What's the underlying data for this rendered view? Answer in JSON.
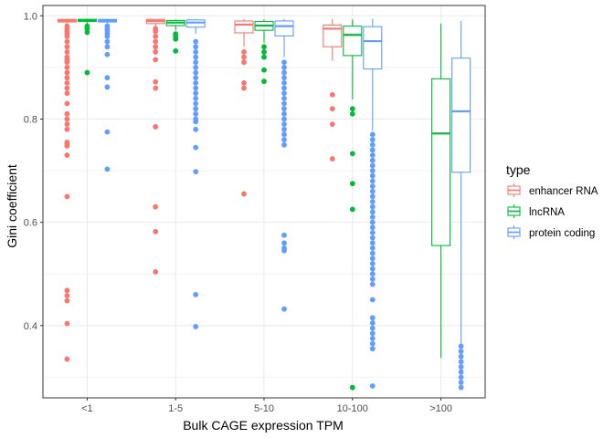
{
  "chart_data": {
    "type": "boxplot",
    "title": "",
    "xlabel": "Bulk CAGE expression TPM",
    "ylabel": "Gini coefficient",
    "categories": [
      "<1",
      "1-5",
      "5-10",
      "10-100",
      ">100"
    ],
    "ylim": [
      0.26,
      1.02
    ],
    "yticks": [
      0.4,
      0.6,
      0.8,
      1.0
    ],
    "ytick_labels": [
      "0.4",
      "0.6",
      "0.8",
      "1.0"
    ],
    "grid": true,
    "legend": {
      "title": "type",
      "position": "right"
    },
    "series": [
      {
        "name": "enhancer RNA",
        "color": "#F8766D",
        "boxes": [
          {
            "category": "<1",
            "q1": 0.988,
            "median": 0.991,
            "q3": 0.993,
            "whisker_low": 0.985,
            "whisker_high": 0.994,
            "outliers": [
              0.335,
              0.404,
              0.448,
              0.458,
              0.468,
              0.65,
              0.73,
              0.748,
              0.752,
              0.755,
              0.78,
              0.79,
              0.8,
              0.81,
              0.83,
              0.85,
              0.86,
              0.87,
              0.88,
              0.89,
              0.9,
              0.91,
              0.915,
              0.92,
              0.93,
              0.94,
              0.95,
              0.96,
              0.965,
              0.97,
              0.975,
              0.98
            ]
          },
          {
            "category": "1-5",
            "q1": 0.985,
            "median": 0.99,
            "q3": 0.993,
            "whisker_low": 0.98,
            "whisker_high": 0.994,
            "outliers": [
              0.504,
              0.582,
              0.63,
              0.785,
              0.86,
              0.872,
              0.915,
              0.93,
              0.94,
              0.95,
              0.96,
              0.97,
              0.975
            ]
          },
          {
            "category": "5-10",
            "q1": 0.967,
            "median": 0.983,
            "q3": 0.99,
            "whisker_low": 0.94,
            "whisker_high": 0.994,
            "outliers": [
              0.655,
              0.86,
              0.87,
              0.91,
              0.92,
              0.93
            ]
          },
          {
            "category": "10-100",
            "q1": 0.94,
            "median": 0.975,
            "q3": 0.982,
            "whisker_low": 0.913,
            "whisker_high": 0.994,
            "outliers": [
              0.723,
              0.79,
              0.82,
              0.847
            ]
          },
          {
            "category": ">100",
            "empty": true
          }
        ]
      },
      {
        "name": "lncRNA",
        "color": "#00BA38",
        "boxes": [
          {
            "category": "<1",
            "q1": 0.989,
            "median": 0.992,
            "q3": 0.993,
            "whisker_low": 0.984,
            "whisker_high": 0.994,
            "outliers": [
              0.89,
              0.968,
              0.975,
              0.98
            ]
          },
          {
            "category": "1-5",
            "q1": 0.981,
            "median": 0.987,
            "q3": 0.991,
            "whisker_low": 0.972,
            "whisker_high": 0.993,
            "outliers": [
              0.932,
              0.955,
              0.96,
              0.965
            ]
          },
          {
            "category": "5-10",
            "q1": 0.972,
            "median": 0.981,
            "q3": 0.989,
            "whisker_low": 0.948,
            "whisker_high": 0.993,
            "outliers": [
              0.873,
              0.895,
              0.92,
              0.93,
              0.94
            ]
          },
          {
            "category": "10-100",
            "q1": 0.923,
            "median": 0.963,
            "q3": 0.98,
            "whisker_low": 0.838,
            "whisker_high": 0.993,
            "outliers": [
              0.28,
              0.625,
              0.675,
              0.733,
              0.81,
              0.82
            ]
          },
          {
            "category": ">100",
            "q1": 0.555,
            "median": 0.772,
            "q3": 0.878,
            "whisker_low": 0.337,
            "whisker_high": 0.985,
            "outliers": []
          }
        ]
      },
      {
        "name": "protein coding",
        "color": "#619CFF",
        "boxes": [
          {
            "category": "<1",
            "q1": 0.988,
            "median": 0.991,
            "q3": 0.993,
            "whisker_low": 0.985,
            "whisker_high": 0.994,
            "outliers": [
              0.703,
              0.775,
              0.862,
              0.88,
              0.925,
              0.94,
              0.95,
              0.96,
              0.965,
              0.97,
              0.975,
              0.98
            ]
          },
          {
            "category": "1-5",
            "q1": 0.978,
            "median": 0.987,
            "q3": 0.992,
            "whisker_low": 0.965,
            "whisker_high": 0.994,
            "outliers": [
              0.398,
              0.46,
              0.698,
              0.745,
              0.78,
              0.795,
              0.8,
              0.81,
              0.82,
              0.83,
              0.84,
              0.85,
              0.86,
              0.87,
              0.88,
              0.89,
              0.9,
              0.91,
              0.92,
              0.93,
              0.94,
              0.95
            ]
          },
          {
            "category": "5-10",
            "q1": 0.961,
            "median": 0.98,
            "q3": 0.99,
            "whisker_low": 0.92,
            "whisker_high": 0.994,
            "outliers": [
              0.432,
              0.545,
              0.55,
              0.56,
              0.575,
              0.75,
              0.76,
              0.77,
              0.78,
              0.79,
              0.8,
              0.81,
              0.82,
              0.83,
              0.84,
              0.85,
              0.86,
              0.87,
              0.88,
              0.89,
              0.9,
              0.91
            ]
          },
          {
            "category": "10-100",
            "q1": 0.897,
            "median": 0.951,
            "q3": 0.979,
            "whisker_low": 0.777,
            "whisker_high": 0.994,
            "outliers": [
              0.283,
              0.355,
              0.365,
              0.375,
              0.385,
              0.395,
              0.405,
              0.415,
              0.45,
              0.48,
              0.49,
              0.5,
              0.51,
              0.52,
              0.53,
              0.54,
              0.55,
              0.56,
              0.57,
              0.58,
              0.59,
              0.6,
              0.61,
              0.62,
              0.63,
              0.64,
              0.65,
              0.66,
              0.67,
              0.68,
              0.69,
              0.7,
              0.71,
              0.72,
              0.73,
              0.74,
              0.75,
              0.76,
              0.77
            ]
          },
          {
            "category": ">100",
            "q1": 0.697,
            "median": 0.815,
            "q3": 0.918,
            "whisker_low": 0.365,
            "whisker_high": 0.99,
            "outliers": [
              0.28,
              0.29,
              0.3,
              0.31,
              0.32,
              0.33,
              0.34,
              0.35,
              0.36
            ]
          }
        ]
      }
    ]
  }
}
